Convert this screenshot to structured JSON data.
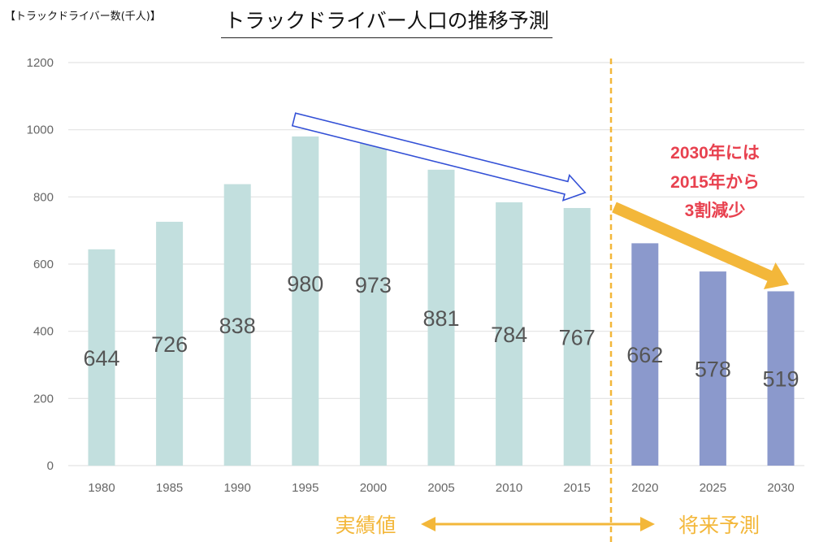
{
  "page": {
    "unit_label": "【トラックドライバー数(千人)】",
    "title": "トラックドライバー人口の推移予測"
  },
  "colors": {
    "actual": "#c2dfde",
    "forecast": "#8b99cc",
    "grid": "#e3e3e3",
    "divider": "#f3b73a",
    "accent_orange": "#f3b73a",
    "trend_arrow": "#3350d6",
    "callout": "#e8414f"
  },
  "chart_data": {
    "type": "bar",
    "title": "トラックドライバー人口の推移予測",
    "ylabel": "【トラックドライバー数(千人)】",
    "xlabel": "",
    "ylim": [
      0,
      1200
    ],
    "yticks": [
      0,
      200,
      400,
      600,
      800,
      1000,
      1200
    ],
    "grid": true,
    "categories": [
      "1980",
      "1985",
      "1990",
      "1995",
      "2000",
      "2005",
      "2010",
      "2015",
      "2020",
      "2025",
      "2030"
    ],
    "values": [
      644,
      726,
      838,
      980,
      973,
      881,
      784,
      767,
      662,
      578,
      519
    ],
    "value_labels": [
      "644",
      "726",
      "838",
      "980",
      "973",
      "881",
      "784",
      "767",
      "662",
      "578",
      "519"
    ],
    "series_kind": [
      "actual",
      "actual",
      "actual",
      "actual",
      "actual",
      "actual",
      "actual",
      "actual",
      "forecast",
      "forecast",
      "forecast"
    ],
    "annotations": {
      "callout_lines": [
        "2030年には",
        "2015年から",
        "3割減少"
      ],
      "actual_label": "実績値",
      "forecast_label": "将来予測",
      "trend_from": "1995",
      "trend_to": "2015",
      "forecast_from": "2015",
      "forecast_to": "2030"
    }
  }
}
